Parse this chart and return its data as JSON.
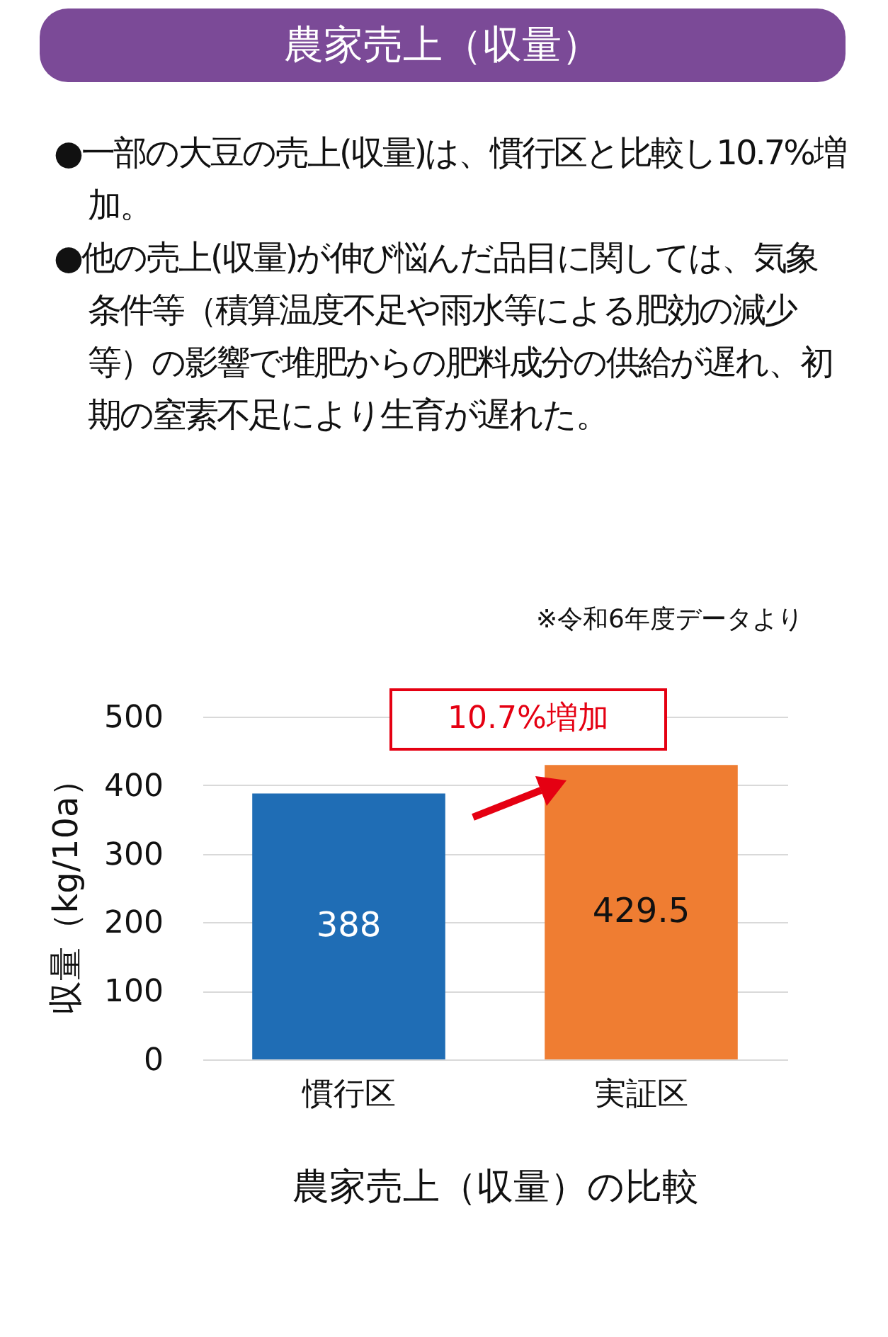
{
  "chart_data": {
    "type": "bar",
    "title": "農家売上（収量）",
    "annotations": [
      "●一部の大豆の売上(収量)は、慣行区と比較し10.7%増加。",
      "●他の売上(収量)が伸び悩んだ品目に関しては、気象条件等（積算温度不足や雨水等による肥効の減少等）の影響で堆肥からの肥料成分の供給が遅れ、初期の窒素不足により生育が遅れた。",
      "※令和6年度データより",
      "10.7%増加"
    ],
    "xlabel": "農家売上（収量）の比較",
    "ylabel": "収量（kg/10a）",
    "categories": [
      "慣行区",
      "実証区"
    ],
    "values": [
      388,
      429.5
    ],
    "colors": [
      "#1f6db5",
      "#ef7d32"
    ],
    "ylim": [
      0,
      500
    ],
    "yticks": [
      0,
      100,
      200,
      300,
      400,
      500
    ],
    "grid": "y",
    "data_labels": true
  }
}
